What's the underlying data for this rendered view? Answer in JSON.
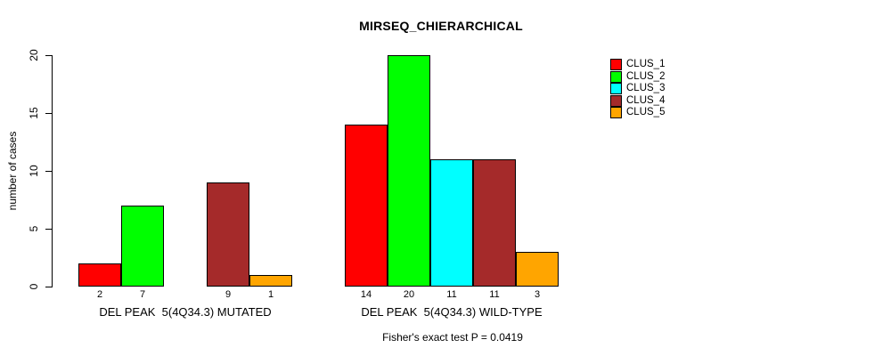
{
  "title": "MIRSEQ_CHIERARCHICAL",
  "footer": "Fisher's exact test P = 0.0419",
  "chart_data": {
    "type": "bar",
    "title": "MIRSEQ_CHIERARCHICAL",
    "xlabel": "",
    "ylabel": "number of cases",
    "ylim": [
      0,
      20
    ],
    "yticks": [
      0,
      5,
      10,
      15,
      20
    ],
    "grid": false,
    "legend_position": "top-right",
    "categories": [
      "DEL PEAK  5(4Q34.3) MUTATED",
      "DEL PEAK  5(4Q34.3) WILD-TYPE"
    ],
    "series": [
      {
        "name": "CLUS_1",
        "color": "#ff0000",
        "values": [
          2,
          14
        ]
      },
      {
        "name": "CLUS_2",
        "color": "#00ff00",
        "values": [
          7,
          20
        ]
      },
      {
        "name": "CLUS_3",
        "color": "#00ffff",
        "values": [
          0,
          11
        ]
      },
      {
        "name": "CLUS_4",
        "color": "#a52a2a",
        "values": [
          9,
          11
        ]
      },
      {
        "name": "CLUS_5",
        "color": "#ffa500",
        "values": [
          1,
          3
        ]
      }
    ],
    "bar_value_labels": [
      "2",
      "7",
      "",
      "9",
      "1",
      "14",
      "20",
      "11",
      "11",
      "3"
    ],
    "annotation": "Fisher's exact test P = 0.0419"
  }
}
